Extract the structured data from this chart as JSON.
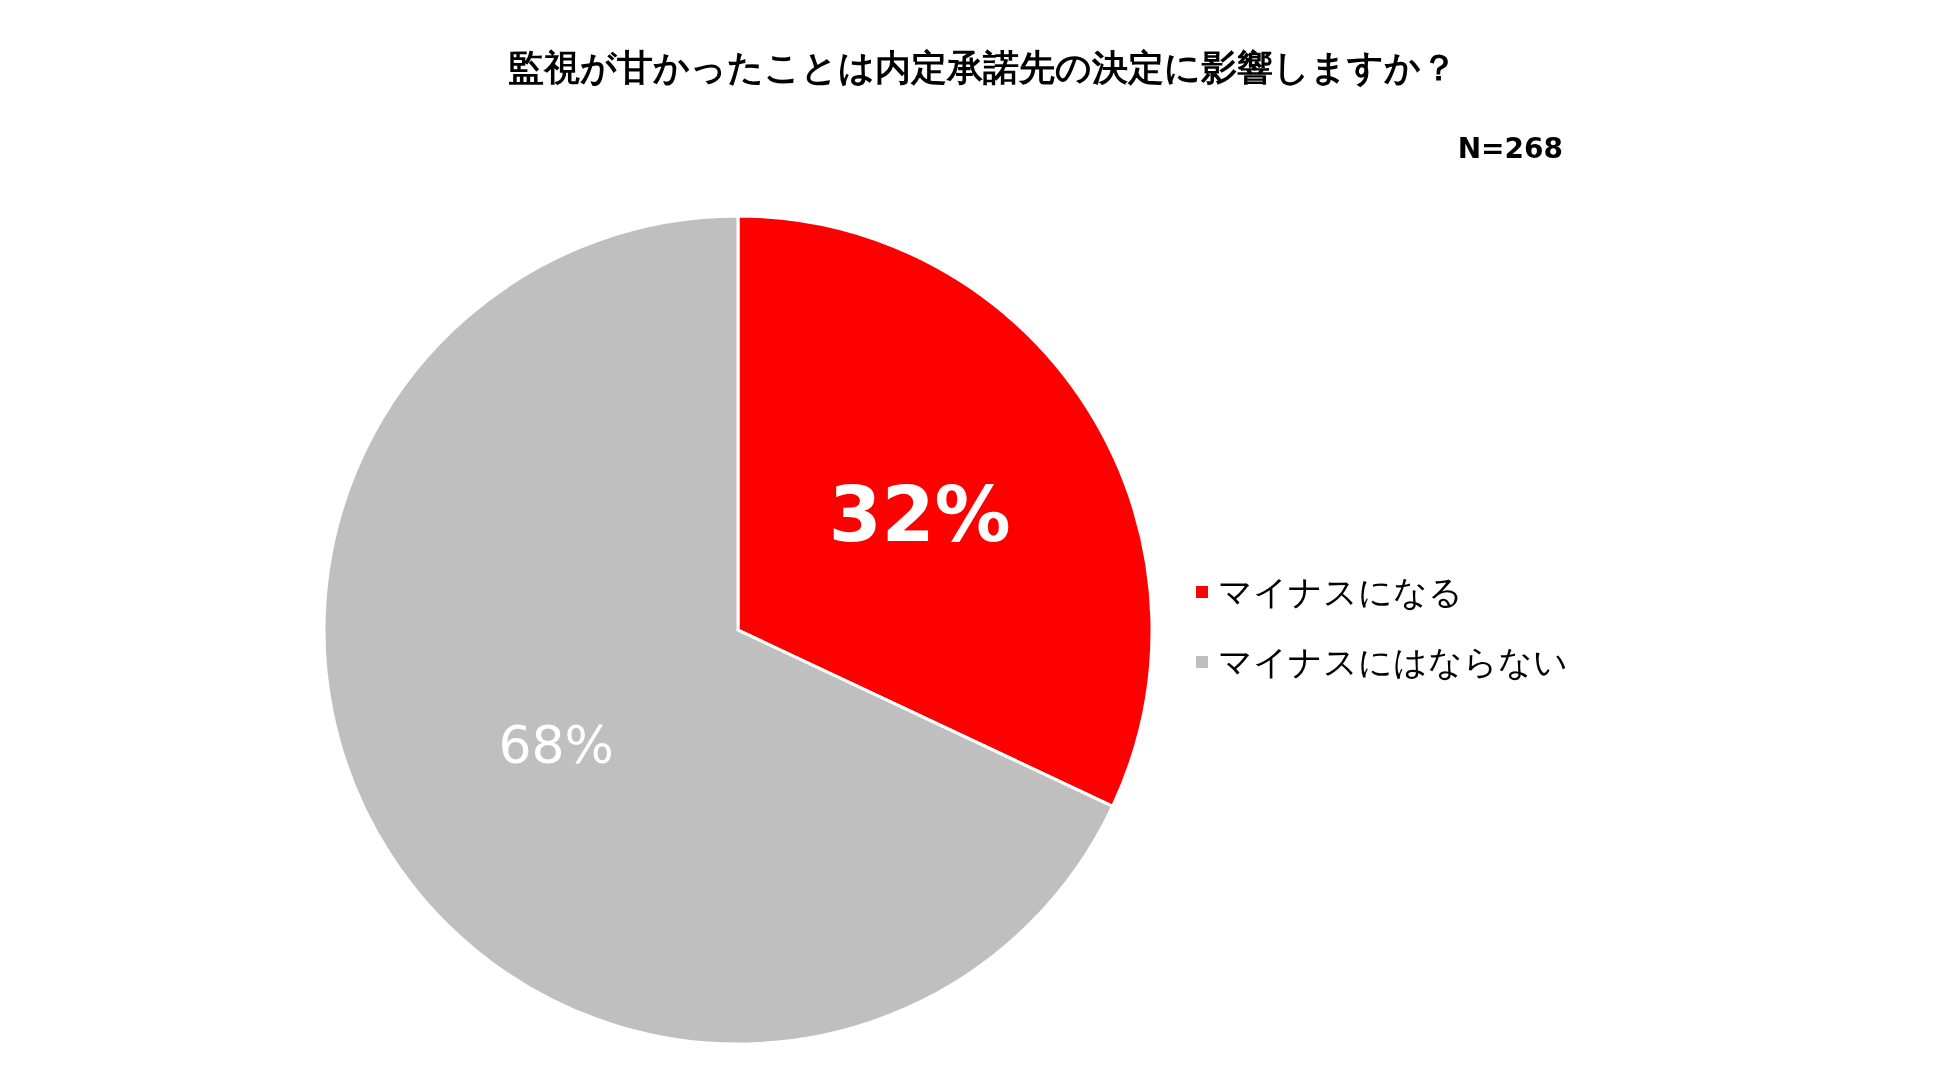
{
  "chart_data": {
    "type": "pie",
    "title": "監視が甘かったことは内定承諾先の決定に影響しますか？",
    "annotations": [
      "N=268"
    ],
    "categories": [
      "マイナスになる",
      "マイナスにはならない"
    ],
    "values": [
      32,
      68
    ],
    "colors": [
      "#ff0000",
      "#bfbfbf"
    ],
    "value_labels": [
      "32%",
      "68%"
    ],
    "legend": "right"
  }
}
